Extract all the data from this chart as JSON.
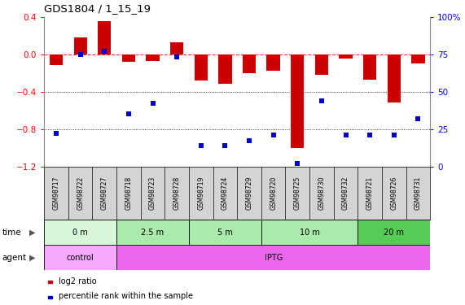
{
  "title": "GDS1804 / 1_15_19",
  "samples": [
    "GSM98717",
    "GSM98722",
    "GSM98727",
    "GSM98718",
    "GSM98723",
    "GSM98728",
    "GSM98719",
    "GSM98724",
    "GSM98729",
    "GSM98720",
    "GSM98725",
    "GSM98730",
    "GSM98732",
    "GSM98721",
    "GSM98726",
    "GSM98731"
  ],
  "log2_ratio": [
    -0.12,
    0.18,
    0.35,
    -0.08,
    -0.07,
    0.13,
    -0.28,
    -0.32,
    -0.2,
    -0.18,
    -1.0,
    -0.22,
    -0.05,
    -0.27,
    -0.52,
    -0.1
  ],
  "percentile_rank": [
    22,
    75,
    77,
    35,
    42,
    73,
    14,
    14,
    17,
    21,
    2,
    44,
    21,
    21,
    21,
    32
  ],
  "time_groups": [
    {
      "label": "0 m",
      "start": 0,
      "end": 3,
      "color": "#d9f7d9"
    },
    {
      "label": "2.5 m",
      "start": 3,
      "end": 6,
      "color": "#aaeaaa"
    },
    {
      "label": "5 m",
      "start": 6,
      "end": 9,
      "color": "#aaeaaa"
    },
    {
      "label": "10 m",
      "start": 9,
      "end": 13,
      "color": "#aaeaaa"
    },
    {
      "label": "20 m",
      "start": 13,
      "end": 16,
      "color": "#55cc55"
    }
  ],
  "agent_groups": [
    {
      "label": "control",
      "start": 0,
      "end": 3,
      "color": "#f5aaff"
    },
    {
      "label": "IPTG",
      "start": 3,
      "end": 16,
      "color": "#ee66ee"
    }
  ],
  "bar_color": "#cc0000",
  "dot_color": "#0000cc",
  "ylim": [
    -1.2,
    0.4
  ],
  "yticks_left": [
    -1.2,
    -0.8,
    -0.4,
    0.0,
    0.4
  ],
  "yticks_right": [
    0,
    25,
    50,
    75,
    100
  ],
  "hline_y": 0.0,
  "dotline1": -0.4,
  "dotline2": -0.8
}
